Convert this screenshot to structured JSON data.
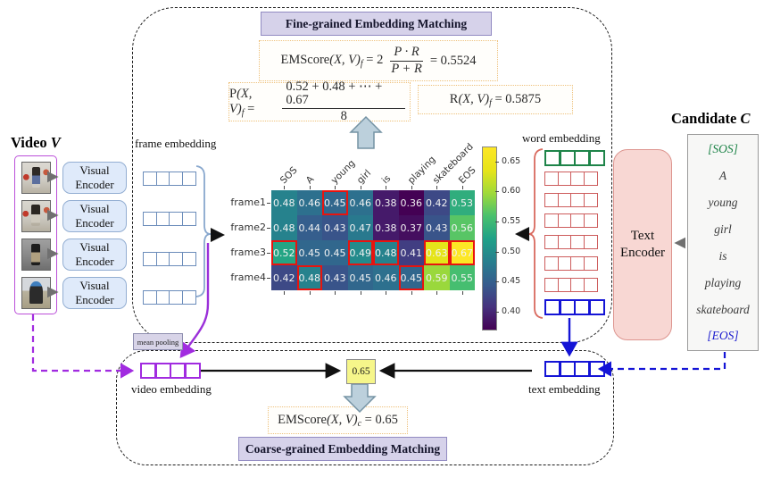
{
  "fine": {
    "title": "Fine-grained Embedding Matching",
    "em_formula": {
      "lhs": "EMScore",
      "args": "(X, V)",
      "sub": "f",
      "pre": "= 2",
      "num": "P · R",
      "den": "P + R",
      "result": "= 0.5524"
    },
    "p_formula": {
      "lhs": "P",
      "args": "(X, V)",
      "sub": "f",
      "eq": "=",
      "num": "0.52 + 0.48 + ⋯ + 0.67",
      "den": "8"
    },
    "r_formula": {
      "lhs": "R",
      "args": "(X, V)",
      "sub": "f",
      "result": "= 0.5875"
    }
  },
  "coarse": {
    "title": "Coarse-grained Embedding Matching",
    "formula": {
      "lhs": "EMScore",
      "args": "(X, V)",
      "sub": "c",
      "result": "= 0.65"
    },
    "score": "0.65"
  },
  "video": {
    "title": "Video",
    "title_var": "V",
    "encoder_line1": "Visual",
    "encoder_line2": "Encoder",
    "frame_count": 4
  },
  "text_encoder": {
    "line1": "Text",
    "line2": "Encoder"
  },
  "candidate": {
    "title": "Candidate",
    "title_var": "C",
    "tokens": [
      {
        "text": "[SOS]",
        "color": "#1e8449"
      },
      {
        "text": "A",
        "color": "#3c3c3c"
      },
      {
        "text": "young",
        "color": "#3c3c3c"
      },
      {
        "text": "girl",
        "color": "#3c3c3c"
      },
      {
        "text": "is",
        "color": "#3c3c3c"
      },
      {
        "text": "playing",
        "color": "#3c3c3c"
      },
      {
        "text": "skateboard",
        "color": "#3c3c3c"
      },
      {
        "text": "[EOS]",
        "color": "#1d1dcf"
      }
    ]
  },
  "labels": {
    "frame_embedding": "frame embedding",
    "word_embedding": "word embedding",
    "video_embedding": "video embedding",
    "text_embedding": "text embedding",
    "mean_pooling": "mean pooling"
  },
  "word_embedding_row_colors": [
    "#1e8449",
    "#cd5c5c",
    "#cd5c5c",
    "#cd5c5c",
    "#cd5c5c",
    "#cd5c5c",
    "#cd5c5c",
    "#1414d6"
  ],
  "frame_embedding_rows": 4,
  "colors": {
    "video_accent": "#a12be0",
    "text_accent": "#1414d6",
    "highlight_red": "#e8140f",
    "formula_border": "#eec17c",
    "title_fill": "#d6d2ea"
  },
  "chart_data": {
    "type": "heatmap",
    "title": "",
    "columns": [
      "SOS",
      "A",
      "young",
      "girl",
      "is",
      "playing",
      "skateboard",
      "EOS"
    ],
    "rows": [
      "frame1",
      "frame2",
      "frame3",
      "frame4"
    ],
    "values": [
      [
        0.48,
        0.46,
        0.45,
        0.46,
        0.38,
        0.36,
        0.42,
        0.53
      ],
      [
        0.48,
        0.44,
        0.43,
        0.47,
        0.38,
        0.37,
        0.43,
        0.56
      ],
      [
        0.52,
        0.45,
        0.45,
        0.49,
        0.48,
        0.41,
        0.63,
        0.67
      ],
      [
        0.42,
        0.48,
        0.43,
        0.45,
        0.46,
        0.45,
        0.59,
        0.55
      ]
    ],
    "highlighted_cells": [
      [
        0,
        2
      ],
      [
        2,
        0
      ],
      [
        2,
        3
      ],
      [
        2,
        4
      ],
      [
        2,
        6
      ],
      [
        2,
        7
      ],
      [
        3,
        1
      ],
      [
        3,
        5
      ]
    ],
    "colormap": "viridis",
    "vmin": 0.36,
    "vmax": 0.67,
    "colorbar_ticks": [
      0.65,
      0.6,
      0.55,
      0.5,
      0.45,
      0.4
    ],
    "legend_position": "right",
    "grid": false
  }
}
